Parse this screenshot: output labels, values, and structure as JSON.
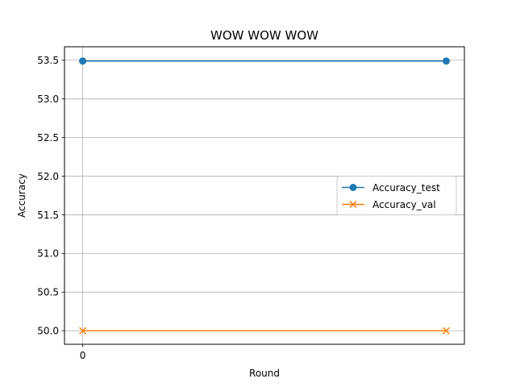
{
  "chart_data": {
    "type": "line",
    "title": "WOW WOW WOW",
    "xlabel": "Round",
    "ylabel": "Accuracy",
    "x": [
      0,
      1
    ],
    "x_tick_values": [
      0
    ],
    "x_tick_labels": [
      "0"
    ],
    "xlim": [
      -0.05,
      1.05
    ],
    "ylim": [
      49.825,
      53.675
    ],
    "y_ticks": [
      50.0,
      50.5,
      51.0,
      51.5,
      52.0,
      52.5,
      53.0,
      53.5
    ],
    "y_tick_labels": [
      "50.0",
      "50.5",
      "51.0",
      "51.5",
      "52.0",
      "52.5",
      "53.0",
      "53.5"
    ],
    "grid": true,
    "legend_position": "center-right",
    "series": [
      {
        "name": "Accuracy_test",
        "values": [
          53.49,
          53.49
        ],
        "color": "#1f77b4",
        "marker": "circle"
      },
      {
        "name": "Accuracy_val",
        "values": [
          50.0,
          50.0
        ],
        "color": "#ff7f0e",
        "marker": "x"
      }
    ]
  }
}
